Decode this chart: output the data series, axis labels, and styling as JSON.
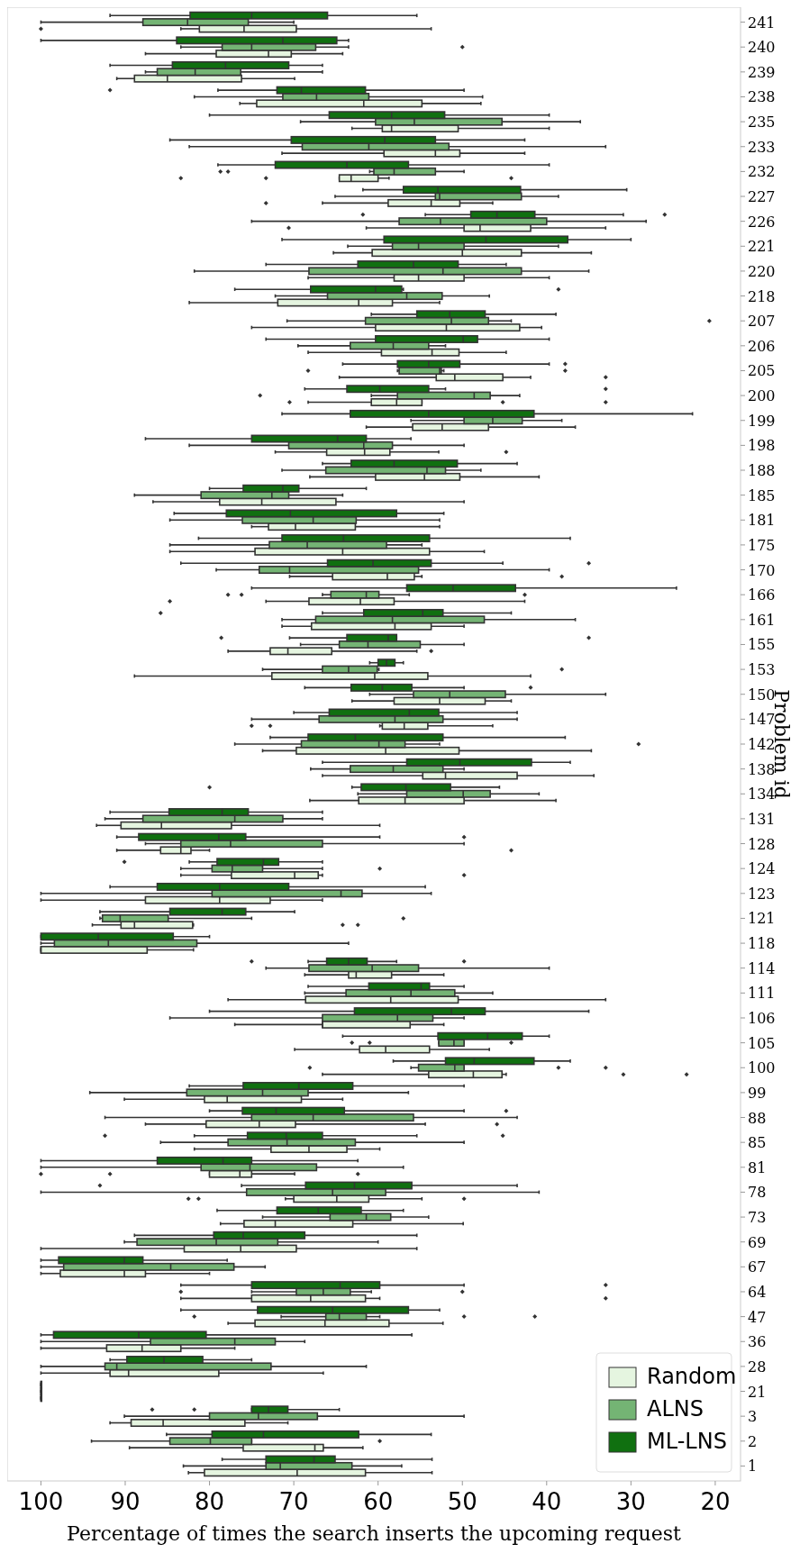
{
  "chart_data": {
    "type": "box",
    "orientation": "horizontal",
    "xlabel": "Percentage of times the search inserts the upcoming request",
    "ylabel": "Problem id",
    "legend": "bottom right",
    "xlim": [
      104,
      17
    ],
    "xticks": [
      100,
      90,
      80,
      70,
      60,
      50,
      40,
      30,
      20
    ],
    "categories": [
      "241",
      "240",
      "239",
      "238",
      "235",
      "233",
      "232",
      "227",
      "226",
      "221",
      "220",
      "218",
      "207",
      "206",
      "205",
      "200",
      "199",
      "198",
      "188",
      "185",
      "181",
      "175",
      "170",
      "166",
      "161",
      "155",
      "153",
      "150",
      "147",
      "142",
      "138",
      "134",
      "131",
      "128",
      "124",
      "123",
      "121",
      "118",
      "114",
      "111",
      "106",
      "105",
      "100",
      "99",
      "88",
      "85",
      "81",
      "78",
      "73",
      "69",
      "67",
      "64",
      "47",
      "36",
      "28",
      "21",
      "3",
      "2",
      "1"
    ],
    "series": [
      {
        "name": "Random",
        "color": "#e5f5e0",
        "boxes": [
          {
            "low": 53.7,
            "q1": 69.7,
            "median": 75.9,
            "q3": 81.2,
            "high": 83.4,
            "outliers": [
              100
            ]
          },
          {
            "low": 64.2,
            "q1": 70.3,
            "median": 73,
            "q3": 79.2,
            "high": 87.6
          },
          {
            "low": 69.9,
            "q1": 76.2,
            "median": 85,
            "q3": 88.9,
            "high": 91
          },
          {
            "low": 47.8,
            "q1": 54.8,
            "median": 61.7,
            "q3": 74.4,
            "high": 76.4
          },
          {
            "low": 39.7,
            "q1": 50.5,
            "median": 58.4,
            "q3": 59.5,
            "high": 63.1
          },
          {
            "low": 42.6,
            "q1": 50.3,
            "median": 53.2,
            "q3": 59.3,
            "high": 71.4
          },
          {
            "low": 58.7,
            "q1": 60,
            "median": 63.2,
            "q3": 64.6,
            "high": 64.6,
            "outliers": [
              83.4,
              73.3,
              44.2
            ]
          },
          {
            "low": 46.4,
            "q1": 50.3,
            "median": 53.7,
            "q3": 58.8,
            "high": 66.6,
            "outliers": [
              73.3
            ]
          },
          {
            "low": 33,
            "q1": 41.9,
            "median": 47.9,
            "q3": 49.8,
            "high": 61.4,
            "outliers": [
              70.6
            ]
          },
          {
            "low": 34.7,
            "q1": 43,
            "median": 50,
            "q3": 60.7,
            "high": 65.3
          },
          {
            "low": 39.7,
            "q1": 49.8,
            "median": 55.2,
            "q3": 58.1,
            "high": 68.3
          },
          {
            "low": 52.7,
            "q1": 58.3,
            "median": 62.3,
            "q3": 71.9,
            "high": 82.4
          },
          {
            "low": 40.6,
            "q1": 43.2,
            "median": 51.9,
            "q3": 60.3,
            "high": 75
          },
          {
            "low": 44.8,
            "q1": 50.4,
            "median": 53.6,
            "q3": 59.6,
            "high": 68.3
          },
          {
            "low": 41.9,
            "q1": 45.2,
            "median": 50.9,
            "q3": 53.1,
            "high": 64.6,
            "outliers": [
              33
            ]
          },
          {
            "low": 54.8,
            "q1": 54.8,
            "median": 57.8,
            "q3": 60.8,
            "high": 68.3,
            "outliers": [
              70.5,
              45.2,
              33
            ]
          },
          {
            "low": 36.6,
            "q1": 46.9,
            "median": 52.4,
            "q3": 55.9,
            "high": 61.4
          },
          {
            "low": 52.8,
            "q1": 58.6,
            "median": 61.6,
            "q3": 66.1,
            "high": 72.2,
            "outliers": [
              44.8
            ]
          },
          {
            "low": 40.9,
            "q1": 50.3,
            "median": 54.5,
            "q3": 60.3,
            "high": 68.1
          },
          {
            "low": 49.8,
            "q1": 65,
            "median": 73.8,
            "q3": 78.8,
            "high": 86.7
          },
          {
            "low": 52.7,
            "q1": 62.7,
            "median": 69.8,
            "q3": 73,
            "high": 75
          },
          {
            "low": 47.4,
            "q1": 53.9,
            "median": 64.2,
            "q3": 74.6,
            "high": 84.7
          },
          {
            "low": 54.8,
            "q1": 55.7,
            "median": 58.9,
            "q3": 65.4,
            "high": 70.5,
            "outliers": [
              38.2
            ]
          },
          {
            "low": 42.6,
            "q1": 58.1,
            "median": 62.1,
            "q3": 68.2,
            "high": 73.3,
            "outliers": [
              84.7
            ]
          },
          {
            "low": 49.8,
            "q1": 53.7,
            "median": 58,
            "q3": 67.9,
            "high": 71.4
          },
          {
            "low": 55.4,
            "q1": 65.5,
            "median": 70.7,
            "q3": 72.8,
            "high": 77.8,
            "outliers": [
              53.7
            ]
          },
          {
            "low": 41.9,
            "q1": 54.1,
            "median": 60.4,
            "q3": 72.6,
            "high": 88.9
          },
          {
            "low": 44.2,
            "q1": 47.3,
            "median": 52.7,
            "q3": 58.1,
            "high": 63.1
          },
          {
            "low": 46.4,
            "q1": 54.1,
            "median": 56.9,
            "q3": 59.5,
            "high": 59.8,
            "outliers": [
              75,
              72.8
            ]
          },
          {
            "low": 34.7,
            "q1": 50.4,
            "median": 59.1,
            "q3": 69.7,
            "high": 73.7
          },
          {
            "low": 34.4,
            "q1": 43.5,
            "median": 52,
            "q3": 54.7,
            "high": 66.6
          },
          {
            "low": 38.9,
            "q1": 49.8,
            "median": 56.8,
            "q3": 62.3,
            "high": 68.1
          },
          {
            "low": 59.8,
            "q1": 77.4,
            "median": 85.7,
            "q3": 90.5,
            "high": 93.4
          },
          {
            "low": 80,
            "q1": 82.2,
            "median": 83.4,
            "q3": 85.8,
            "high": 91,
            "outliers": [
              44.2
            ]
          },
          {
            "low": 66.6,
            "q1": 67.1,
            "median": 69.9,
            "q3": 77.4,
            "high": 83.4,
            "outliers": [
              49.8
            ]
          },
          {
            "low": 66.6,
            "q1": 72.8,
            "median": 78.8,
            "q3": 87.6,
            "high": 100
          },
          {
            "low": 81.9,
            "q1": 82,
            "median": 88.9,
            "q3": 90.5,
            "high": 93.9,
            "outliers": [
              64.2,
              62.4
            ]
          },
          {
            "low": 81.9,
            "q1": 87.4,
            "median": 100,
            "q3": 100,
            "high": 100
          },
          {
            "low": 52.2,
            "q1": 58.4,
            "median": 62.6,
            "q3": 63.5,
            "high": 68.7
          },
          {
            "low": 33,
            "q1": 50.5,
            "median": 58.5,
            "q3": 68.6,
            "high": 77.8
          },
          {
            "low": 52.2,
            "q1": 56.2,
            "median": 66.6,
            "q3": 66.6,
            "high": 77
          },
          {
            "low": 46.8,
            "q1": 53.9,
            "median": 59.1,
            "q3": 62.2,
            "high": 69.9
          },
          {
            "low": 44.8,
            "q1": 45.3,
            "median": 48.7,
            "q3": 54,
            "high": 66.6,
            "outliers": [
              30.9,
              23.4
            ]
          },
          {
            "low": 64.2,
            "q1": 69.1,
            "median": 77.9,
            "q3": 80.6,
            "high": 90.1
          },
          {
            "low": 54.4,
            "q1": 69.8,
            "median": 74.1,
            "q3": 80.4,
            "high": 87.6,
            "outliers": [
              45.9
            ]
          },
          {
            "low": 59.8,
            "q1": 63.7,
            "median": 68.2,
            "q3": 72.7,
            "high": 81.8
          },
          {
            "low": 69.9,
            "q1": 75,
            "median": 76.4,
            "q3": 80,
            "high": 80,
            "outliers": [
              100,
              91.8,
              62.4
            ]
          },
          {
            "low": 54.8,
            "q1": 61.1,
            "median": 64.9,
            "q3": 70,
            "high": 71,
            "outliers": [
              82.5,
              81.3,
              49.8
            ]
          },
          {
            "low": 49.9,
            "q1": 63,
            "median": 72.2,
            "q3": 75.9,
            "high": 78.7
          },
          {
            "low": 55.4,
            "q1": 69.7,
            "median": 76.3,
            "q3": 83,
            "high": 100
          },
          {
            "low": 80,
            "q1": 87.6,
            "median": 90.1,
            "q3": 97.7,
            "high": 100
          },
          {
            "low": 59.8,
            "q1": 61.5,
            "median": 68,
            "q3": 75,
            "high": 83.4,
            "outliers": [
              33
            ]
          },
          {
            "low": 52.3,
            "q1": 58.7,
            "median": 66.3,
            "q3": 74.6,
            "high": 77.8
          },
          {
            "low": 77,
            "q1": 83.4,
            "median": 88,
            "q3": 92.2,
            "high": 100
          },
          {
            "low": 66.5,
            "q1": 78.9,
            "median": 89.6,
            "q3": 91.8,
            "high": 100
          },
          {
            "low": 100,
            "q1": 100,
            "median": 100,
            "q3": 100,
            "high": 100
          },
          {
            "low": 70.7,
            "q1": 75.8,
            "median": 85.5,
            "q3": 89.3,
            "high": 91.8
          },
          {
            "low": 61.8,
            "q1": 66.5,
            "median": 67.5,
            "q3": 76,
            "high": 89.5
          },
          {
            "low": 53.6,
            "q1": 61.5,
            "median": 69.6,
            "q3": 80.6,
            "high": 82.5
          }
        ]
      },
      {
        "name": "ALNS",
        "color": "#74b474",
        "boxes": [
          {
            "low": 70,
            "q1": 75.4,
            "median": 82.6,
            "q3": 87.9,
            "high": 100
          },
          {
            "low": 63.5,
            "q1": 67.4,
            "median": 75,
            "q3": 78.5,
            "high": 83.4,
            "outliers": [
              50
            ]
          },
          {
            "low": 66.6,
            "q1": 76.3,
            "median": 81.7,
            "q3": 86.2,
            "high": 87.6
          },
          {
            "low": 47.6,
            "q1": 61.1,
            "median": 67.3,
            "q3": 71.3,
            "high": 81.8
          },
          {
            "low": 36,
            "q1": 45.3,
            "median": 55.7,
            "q3": 60.3,
            "high": 69.2
          },
          {
            "low": 33,
            "q1": 51.6,
            "median": 61.1,
            "q3": 69,
            "high": 82.4
          },
          {
            "low": 49.8,
            "q1": 53.2,
            "median": 58.1,
            "q3": 60.5,
            "high": 61,
            "outliers": [
              78.7,
              77.8
            ]
          },
          {
            "low": 38.6,
            "q1": 43,
            "median": 52.7,
            "q3": 53.2,
            "high": 65.1
          },
          {
            "low": 28.2,
            "q1": 40,
            "median": 52.6,
            "q3": 57.5,
            "high": 75
          },
          {
            "low": 38.6,
            "q1": 49.8,
            "median": 55.2,
            "q3": 58.3,
            "high": 63.6
          },
          {
            "low": 35,
            "q1": 43,
            "median": 52.3,
            "q3": 68.2,
            "high": 81.8
          },
          {
            "low": 46.8,
            "q1": 52.4,
            "median": 56.6,
            "q3": 66,
            "high": 72.2
          },
          {
            "low": 44.2,
            "q1": 46.9,
            "median": 51.3,
            "q3": 61.5,
            "high": 70.8,
            "outliers": [
              20.7
            ]
          },
          {
            "low": 52,
            "q1": 54,
            "median": 58.2,
            "q3": 63.3,
            "high": 69.5
          },
          {
            "low": 52.2,
            "q1": 52.5,
            "median": 52.7,
            "q3": 57.5,
            "high": 57.7,
            "outliers": [
              68.3,
              37.8
            ]
          },
          {
            "low": 43.2,
            "q1": 46.7,
            "median": 48.6,
            "q3": 57.7,
            "high": 60.8,
            "outliers": [
              74
            ]
          },
          {
            "low": 38.2,
            "q1": 42.9,
            "median": 46.4,
            "q3": 49.8,
            "high": 56.1
          },
          {
            "low": 49.8,
            "q1": 58.3,
            "median": 61.7,
            "q3": 70.6,
            "high": 82.4
          },
          {
            "low": 47.8,
            "q1": 52,
            "median": 54.2,
            "q3": 66.2,
            "high": 71.4
          },
          {
            "low": 64.2,
            "q1": 70.6,
            "median": 72.6,
            "q3": 81,
            "high": 88.9
          },
          {
            "low": 52.7,
            "q1": 62.6,
            "median": 67.7,
            "q3": 76.1,
            "high": 84.7
          },
          {
            "low": 54.8,
            "q1": 59,
            "median": 68.4,
            "q3": 72.9,
            "high": 84.7
          },
          {
            "low": 39.7,
            "q1": 55.2,
            "median": 70.5,
            "q3": 74.1,
            "high": 79.2
          },
          {
            "low": 56.3,
            "q1": 59.9,
            "median": 61.4,
            "q3": 65.6,
            "high": 66.6,
            "outliers": [
              77.8,
              76.2,
              42.6
            ]
          },
          {
            "low": 36.6,
            "q1": 47.4,
            "median": 58.3,
            "q3": 67.4,
            "high": 71.4
          },
          {
            "low": 49.8,
            "q1": 55,
            "median": 61.2,
            "q3": 64.6,
            "high": 69.2
          },
          {
            "low": 59.9,
            "q1": 60.1,
            "median": 63.5,
            "q3": 66.6,
            "high": 73.7,
            "outliers": [
              38.2
            ]
          },
          {
            "low": 33,
            "q1": 44.9,
            "median": 51.5,
            "q3": 55.8,
            "high": 61
          },
          {
            "low": 43.5,
            "q1": 52.3,
            "median": 58,
            "q3": 67,
            "high": 75
          },
          {
            "low": 52.7,
            "q1": 56.8,
            "median": 59.9,
            "q3": 69.1,
            "high": 77,
            "outliers": [
              29.1
            ]
          },
          {
            "low": 49.8,
            "q1": 52.3,
            "median": 58.2,
            "q3": 63.3,
            "high": 68
          },
          {
            "low": 40.9,
            "q1": 46.7,
            "median": 49.9,
            "q3": 56.6,
            "high": 62.4
          },
          {
            "low": 66.6,
            "q1": 71.3,
            "median": 77,
            "q3": 87.9,
            "high": 92.4
          },
          {
            "low": 49.8,
            "q1": 66.6,
            "median": 77.5,
            "q3": 83.4,
            "high": 87.6
          },
          {
            "low": 66.6,
            "q1": 73.7,
            "median": 77.3,
            "q3": 79.7,
            "high": 83.4,
            "outliers": [
              59.8
            ]
          },
          {
            "low": 53.7,
            "q1": 61.9,
            "median": 64.4,
            "q3": 79.7,
            "high": 100
          },
          {
            "low": 75,
            "q1": 84.9,
            "median": 90.6,
            "q3": 92.7,
            "high": 93,
            "outliers": [
              57
            ]
          },
          {
            "low": 63.5,
            "q1": 81.5,
            "median": 92,
            "q3": 98.4,
            "high": 100
          },
          {
            "low": 39.7,
            "q1": 55.2,
            "median": 60.7,
            "q3": 68.2,
            "high": 73.3
          },
          {
            "low": 46.4,
            "q1": 50.9,
            "median": 56.1,
            "q3": 63.8,
            "high": 68.7
          },
          {
            "low": 49.8,
            "q1": 53.5,
            "median": 57.7,
            "q3": 66.6,
            "high": 84.7
          },
          {
            "low": 49.8,
            "q1": 49.8,
            "median": 51,
            "q3": 52.8,
            "high": 52.8,
            "outliers": [
              63.1,
              61,
              44.2
            ]
          },
          {
            "low": 49.8,
            "q1": 49.8,
            "median": 50.9,
            "q3": 55.2,
            "high": 56.1,
            "outliers": [
              68.1,
              38.6,
              33
            ]
          },
          {
            "low": 56.4,
            "q1": 68.3,
            "median": 73.7,
            "q3": 82.7,
            "high": 94.2
          },
          {
            "low": 43.5,
            "q1": 55.8,
            "median": 67.7,
            "q3": 75,
            "high": 92.4
          },
          {
            "low": 49.8,
            "q1": 62.7,
            "median": 70.8,
            "q3": 77.8,
            "high": 85.8
          },
          {
            "low": 57,
            "q1": 67.3,
            "median": 75.2,
            "q3": 81,
            "high": 100
          },
          {
            "low": 40.9,
            "q1": 59.1,
            "median": 65.4,
            "q3": 75.6,
            "high": 100
          },
          {
            "low": 54,
            "q1": 58.5,
            "median": 61.4,
            "q3": 65.7,
            "high": 73.7
          },
          {
            "low": 60,
            "q1": 71.9,
            "median": 79.2,
            "q3": 88.6,
            "high": 90.1
          },
          {
            "low": 73.4,
            "q1": 77.1,
            "median": 84.6,
            "q3": 97.3,
            "high": 100
          },
          {
            "low": 60.8,
            "q1": 63.3,
            "median": 66.5,
            "q3": 69.7,
            "high": 75,
            "outliers": [
              83.4,
              50
            ]
          },
          {
            "low": 59.8,
            "q1": 61.4,
            "median": 64.6,
            "q3": 66.2,
            "high": 71.5,
            "outliers": [
              81.8,
              49.8,
              41.4
            ]
          },
          {
            "low": 68.7,
            "q1": 72.2,
            "median": 77,
            "q3": 87,
            "high": 100
          },
          {
            "low": 61.4,
            "q1": 72.7,
            "median": 91,
            "q3": 92.4,
            "high": 100
          },
          {
            "low": 100,
            "q1": 100,
            "median": 100,
            "q3": 100,
            "high": 100
          },
          {
            "low": 49.8,
            "q1": 67.2,
            "median": 74.2,
            "q3": 80,
            "high": 90.1
          },
          {
            "low": 75,
            "q1": 75,
            "median": 79.9,
            "q3": 84.7,
            "high": 94,
            "outliers": [
              59.8
            ]
          },
          {
            "low": 57.2,
            "q1": 63.1,
            "median": 71.6,
            "q3": 73.3,
            "high": 83.1
          }
        ]
      },
      {
        "name": "ML-LNS",
        "color": "#107010",
        "boxes": [
          {
            "low": 55.4,
            "q1": 66,
            "median": 75,
            "q3": 82.3,
            "high": 91.8
          },
          {
            "low": 63.5,
            "q1": 64.9,
            "median": 71.3,
            "q3": 83.9,
            "high": 100
          },
          {
            "low": 66.6,
            "q1": 70.6,
            "median": 78.1,
            "q3": 84.4,
            "high": 91.8
          },
          {
            "low": 49.8,
            "q1": 61.5,
            "median": 69.1,
            "q3": 72,
            "high": 79,
            "outliers": [
              91.8
            ]
          },
          {
            "low": 39.7,
            "q1": 52.1,
            "median": 58.4,
            "q3": 65.8,
            "high": 80
          },
          {
            "low": 42.6,
            "q1": 53.2,
            "median": 59.2,
            "q3": 70.3,
            "high": 84.7
          },
          {
            "low": 39.7,
            "q1": 56.4,
            "median": 63.7,
            "q3": 72.2,
            "high": 79
          },
          {
            "low": 30.5,
            "q1": 43.1,
            "median": 52.9,
            "q3": 57,
            "high": 61.8
          },
          {
            "low": 30.9,
            "q1": 41.4,
            "median": 45.9,
            "q3": 49,
            "high": 54.4,
            "outliers": [
              61.8,
              26
            ]
          },
          {
            "low": 30,
            "q1": 37.5,
            "median": 47.2,
            "q3": 59.3,
            "high": 71.4
          },
          {
            "low": 44.8,
            "q1": 50.5,
            "median": 55.8,
            "q3": 62.4,
            "high": 73.3
          },
          {
            "low": 57,
            "q1": 57.2,
            "median": 60.3,
            "q3": 68,
            "high": 77,
            "outliers": [
              38.6
            ]
          },
          {
            "low": 38.9,
            "q1": 47.3,
            "median": 51.5,
            "q3": 55.4,
            "high": 60.8
          },
          {
            "low": 39.7,
            "q1": 48.2,
            "median": 49.9,
            "q3": 60.3,
            "high": 73.3
          },
          {
            "low": 39.7,
            "q1": 50.3,
            "median": 54,
            "q3": 57.7,
            "high": 64.2,
            "outliers": [
              37.8
            ]
          },
          {
            "low": 52,
            "q1": 54,
            "median": 59.8,
            "q3": 63.7,
            "high": 68.7,
            "outliers": [
              33
            ]
          },
          {
            "low": 22.7,
            "q1": 41.5,
            "median": 54,
            "q3": 63.3,
            "high": 71.4
          },
          {
            "low": 56.1,
            "q1": 61.4,
            "median": 64.8,
            "q3": 75,
            "high": 87.6
          },
          {
            "low": 43.5,
            "q1": 50.6,
            "median": 58.1,
            "q3": 63.2,
            "high": 66.6
          },
          {
            "low": 61.4,
            "q1": 69.4,
            "median": 71.3,
            "q3": 76,
            "high": 80
          },
          {
            "low": 52.2,
            "q1": 57.8,
            "median": 70.4,
            "q3": 78,
            "high": 84.2
          },
          {
            "low": 37.2,
            "q1": 53.9,
            "median": 64.1,
            "q3": 71.4,
            "high": 81.3
          },
          {
            "low": 45.2,
            "q1": 53.7,
            "median": 60.6,
            "q3": 66,
            "high": 83.4,
            "outliers": [
              35
            ]
          },
          {
            "low": 24.6,
            "q1": 43.7,
            "median": 51.1,
            "q3": 56.6,
            "high": 75
          },
          {
            "low": 44.2,
            "q1": 52.3,
            "median": 54.7,
            "q3": 61.7,
            "high": 66.6,
            "outliers": [
              85.8
            ]
          },
          {
            "low": 57.8,
            "q1": 57.8,
            "median": 58.8,
            "q3": 63.7,
            "high": 70.5,
            "outliers": [
              78.6,
              35
            ]
          },
          {
            "low": 57,
            "q1": 58,
            "median": 59,
            "q3": 60,
            "high": 61
          },
          {
            "low": 49.8,
            "q1": 56,
            "median": 59.5,
            "q3": 63.2,
            "high": 68.7,
            "outliers": [
              41.9
            ]
          },
          {
            "low": 43.5,
            "q1": 52.8,
            "median": 56.3,
            "q3": 65.8,
            "high": 70
          },
          {
            "low": 37.8,
            "q1": 52.3,
            "median": 62.7,
            "q3": 68.3,
            "high": 72.8
          },
          {
            "low": 37.2,
            "q1": 41.8,
            "median": 50.3,
            "q3": 56.6,
            "high": 66.6
          },
          {
            "low": 45.6,
            "q1": 51.4,
            "median": 56.7,
            "q3": 62,
            "high": 63.1,
            "outliers": [
              80
            ]
          },
          {
            "low": 66.6,
            "q1": 75.4,
            "median": 78.5,
            "q3": 84.8,
            "high": 91.8
          },
          {
            "low": 59.8,
            "q1": 75.7,
            "median": 78.9,
            "q3": 88.4,
            "high": 91,
            "outliers": [
              49.8
            ]
          },
          {
            "low": 66.6,
            "q1": 71.8,
            "median": 73.6,
            "q3": 79.1,
            "high": 82.4,
            "outliers": [
              90.1
            ]
          },
          {
            "low": 54.4,
            "q1": 70.6,
            "median": 78.8,
            "q3": 86.2,
            "high": 91.8
          },
          {
            "low": 69.9,
            "q1": 75.7,
            "median": 78.5,
            "q3": 84.7,
            "high": 93
          },
          {
            "low": 80,
            "q1": 84.3,
            "median": 93.2,
            "q3": 100,
            "high": 100
          },
          {
            "low": 57.8,
            "q1": 61.3,
            "median": 63.5,
            "q3": 66.1,
            "high": 68.3,
            "outliers": [
              75,
              49.8
            ]
          },
          {
            "low": 49.8,
            "q1": 53.9,
            "median": 54.9,
            "q3": 61.1,
            "high": 68.3
          },
          {
            "low": 35,
            "q1": 47.3,
            "median": 51.3,
            "q3": 62.8,
            "high": 80
          },
          {
            "low": 39.7,
            "q1": 42.9,
            "median": 47,
            "q3": 52.9,
            "high": 64.2
          },
          {
            "low": 37.2,
            "q1": 41.5,
            "median": 48.6,
            "q3": 52,
            "high": 58.2
          },
          {
            "low": 49.8,
            "q1": 63,
            "median": 69.4,
            "q3": 76,
            "high": 82.4
          },
          {
            "low": 49.8,
            "q1": 64,
            "median": 72.1,
            "q3": 76.1,
            "high": 80,
            "outliers": [
              44.8
            ]
          },
          {
            "low": 55.4,
            "q1": 66.6,
            "median": 70.9,
            "q3": 75.5,
            "high": 81.8,
            "outliers": [
              92.4,
              45.2
            ]
          },
          {
            "low": 62.4,
            "q1": 75,
            "median": 78.4,
            "q3": 86.2,
            "high": 100
          },
          {
            "low": 43.5,
            "q1": 56,
            "median": 62.8,
            "q3": 68.6,
            "high": 76.2,
            "outliers": [
              93
            ]
          },
          {
            "low": 57,
            "q1": 62,
            "median": 67.1,
            "q3": 72,
            "high": 79.1
          },
          {
            "low": 55.4,
            "q1": 68.7,
            "median": 76,
            "q3": 79.5,
            "high": 88.9
          },
          {
            "low": 77.9,
            "q1": 87.9,
            "median": 90.1,
            "q3": 97.9,
            "high": 100
          },
          {
            "low": 49.8,
            "q1": 59.8,
            "median": 64.5,
            "q3": 75,
            "high": 83.4,
            "outliers": [
              33
            ]
          },
          {
            "low": 52.7,
            "q1": 56.4,
            "median": 65.4,
            "q3": 74.3,
            "high": 83.4
          },
          {
            "low": 56,
            "q1": 80.4,
            "median": 88.4,
            "q3": 98.5,
            "high": 100
          },
          {
            "low": 75,
            "q1": 80.8,
            "median": 85.4,
            "q3": 89.8,
            "high": 91.8
          },
          {
            "low": 100,
            "q1": 100,
            "median": 100,
            "q3": 100,
            "high": 100
          },
          {
            "low": 64.6,
            "q1": 70.7,
            "median": 73,
            "q3": 75,
            "high": 75,
            "outliers": [
              86.8,
              81.8
            ]
          },
          {
            "low": 53.7,
            "q1": 62.3,
            "median": 73.6,
            "q3": 79.7,
            "high": 85.1
          },
          {
            "low": 53.6,
            "q1": 65.1,
            "median": 67.6,
            "q3": 73.3,
            "high": 78.5
          }
        ]
      }
    ]
  }
}
